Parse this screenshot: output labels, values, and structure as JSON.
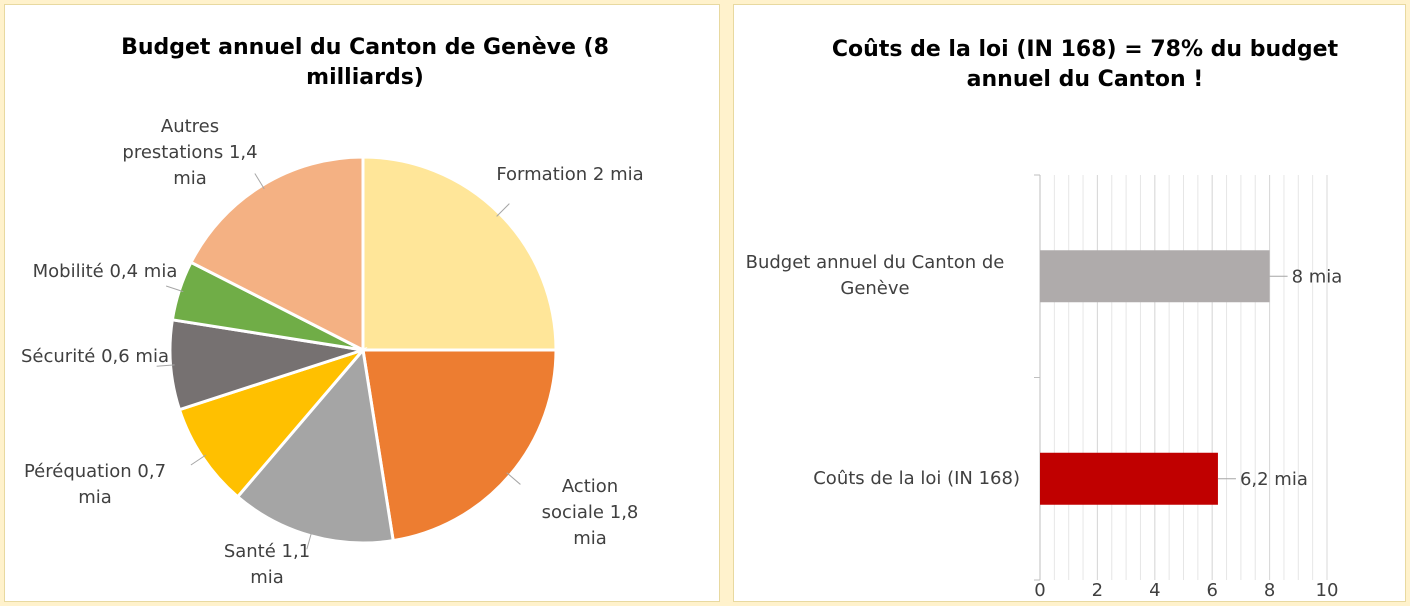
{
  "chart_data": [
    {
      "type": "pie",
      "title": "Budget annuel du Canton de Genève (8 milliards)",
      "categories": [
        "Formation",
        "Action sociale",
        "Santé",
        "Péréquation",
        "Sécurité",
        "Mobilité",
        "Autres prestations"
      ],
      "values": [
        2,
        1.8,
        1.1,
        0.7,
        0.6,
        0.4,
        1.4
      ],
      "value_labels": [
        "2 mia",
        "1,8 mia",
        "1,1 mia",
        "0,7 mia",
        "0,6 mia",
        "0,4 mia",
        "1,4 mia"
      ],
      "colors": [
        "#FFE699",
        "#ED7D31",
        "#A5A5A5",
        "#FFC000",
        "#767171",
        "#70AD47",
        "#F4B183"
      ]
    },
    {
      "type": "hbar",
      "title": "Coûts de la loi (IN 168) = 78% du budget annuel du Canton !",
      "categories": [
        "Budget annuel du Canton de Genève",
        "Coûts de la loi (IN 168)"
      ],
      "values": [
        8,
        6.2
      ],
      "value_labels": [
        "8 mia",
        "6,2 mia"
      ],
      "colors": [
        "#AFABAB",
        "#C00000"
      ],
      "xlim": [
        0,
        10
      ],
      "xticks": [
        0,
        2,
        4,
        6,
        8,
        10
      ],
      "grid": true
    }
  ]
}
